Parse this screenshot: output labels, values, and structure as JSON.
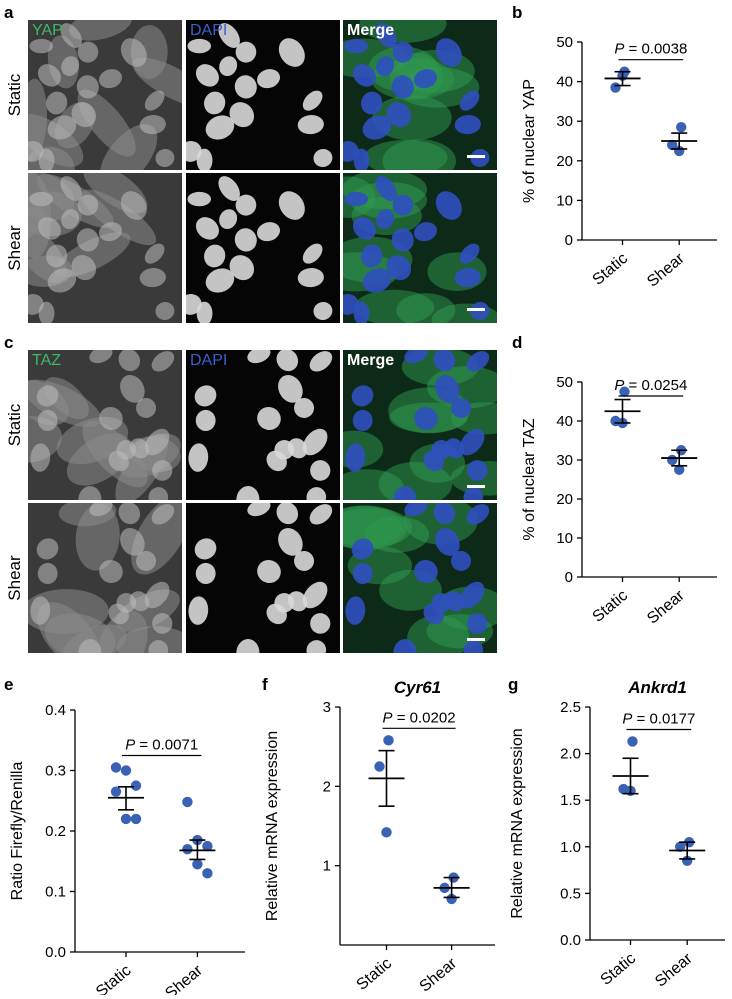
{
  "panels": [
    "a",
    "b",
    "c",
    "d",
    "e",
    "f",
    "g"
  ],
  "micrographs": {
    "a": {
      "channels": [
        "YAP",
        "DAPI",
        "Merge"
      ],
      "rows": [
        "Static",
        "Shear"
      ]
    },
    "c": {
      "channels": [
        "TAZ",
        "DAPI",
        "Merge"
      ],
      "rows": [
        "Static",
        "Shear"
      ]
    }
  },
  "colors": {
    "point": "#3a62b4",
    "channel_green": "#3fb86a",
    "channel_blue": "#3b5fd0",
    "channel_white": "#ffffff"
  },
  "chart_data": [
    {
      "id": "b",
      "type": "scatter",
      "categories": [
        "Static",
        "Shear"
      ],
      "ylabel": "% of nuclear YAP",
      "yticks": [
        0,
        10,
        20,
        30,
        40,
        50
      ],
      "ylim": [
        0,
        50
      ],
      "points": [
        [
          42.5,
          38.5,
          41.5
        ],
        [
          28.5,
          24.0,
          22.5
        ]
      ],
      "mean": [
        40.8,
        25.0
      ],
      "sem_bar": [
        [
          39.0,
          42.5
        ],
        [
          23.0,
          27.0
        ]
      ],
      "pvalue_text": "= 0.0038",
      "pvalue_sym": "P"
    },
    {
      "id": "d",
      "type": "scatter",
      "categories": [
        "Static",
        "Shear"
      ],
      "ylabel": "% of nuclear TAZ",
      "yticks": [
        0,
        10,
        20,
        30,
        40,
        50
      ],
      "ylim": [
        0,
        50
      ],
      "points": [
        [
          47.5,
          40.0,
          39.5
        ],
        [
          32.5,
          30.0,
          27.5
        ]
      ],
      "mean": [
        42.5,
        30.5
      ],
      "sem_bar": [
        [
          39.5,
          45.5
        ],
        [
          28.5,
          32.5
        ]
      ],
      "pvalue_text": "= 0.0254",
      "pvalue_sym": "P"
    },
    {
      "id": "e",
      "type": "scatter",
      "categories": [
        "Static",
        "Shear"
      ],
      "ylabel": "Ratio Firefly/Renilla",
      "yticks": [
        0.0,
        0.1,
        0.2,
        0.3,
        0.4
      ],
      "ytick_labels": [
        "0.0",
        "0.1",
        "0.2",
        "0.3",
        "0.4"
      ],
      "ylim": [
        0,
        0.4
      ],
      "points": [
        [
          0.305,
          0.3,
          0.275,
          0.265,
          0.22,
          0.22
        ],
        [
          0.248,
          0.185,
          0.175,
          0.17,
          0.145,
          0.13
        ]
      ],
      "mean": [
        0.255,
        0.168
      ],
      "sem_bar": [
        [
          0.235,
          0.273
        ],
        [
          0.153,
          0.185
        ]
      ],
      "pvalue_text": "= 0.0071",
      "pvalue_sym": "P"
    },
    {
      "id": "f",
      "type": "scatter",
      "title": "Cyr61",
      "categories": [
        "Static",
        "Shear"
      ],
      "ylabel": "Relative mRNA expression",
      "yticks": [
        1,
        2,
        3
      ],
      "ylim": [
        0,
        3
      ],
      "points": [
        [
          2.58,
          2.25,
          1.42
        ],
        [
          0.85,
          0.72,
          0.58
        ]
      ],
      "mean": [
        2.1,
        0.72
      ],
      "sem_bar": [
        [
          1.75,
          2.45
        ],
        [
          0.6,
          0.85
        ]
      ],
      "pvalue_text": "= 0.0202",
      "pvalue_sym": "P"
    },
    {
      "id": "g",
      "type": "scatter",
      "title": "Ankrd1",
      "categories": [
        "Static",
        "Shear"
      ],
      "ylabel": "Relative mRNA expression",
      "yticks": [
        0.0,
        0.5,
        1.0,
        1.5,
        2.0,
        2.5
      ],
      "ytick_labels": [
        "0.0",
        "0.5",
        "1.0",
        "1.5",
        "2.0",
        "2.5"
      ],
      "ylim": [
        0,
        2.5
      ],
      "points": [
        [
          2.13,
          1.62,
          1.6
        ],
        [
          1.05,
          1.0,
          0.85
        ]
      ],
      "mean": [
        1.76,
        0.96
      ],
      "sem_bar": [
        [
          1.57,
          1.95
        ],
        [
          0.87,
          1.05
        ]
      ],
      "pvalue_text": "= 0.0177",
      "pvalue_sym": "P"
    }
  ]
}
